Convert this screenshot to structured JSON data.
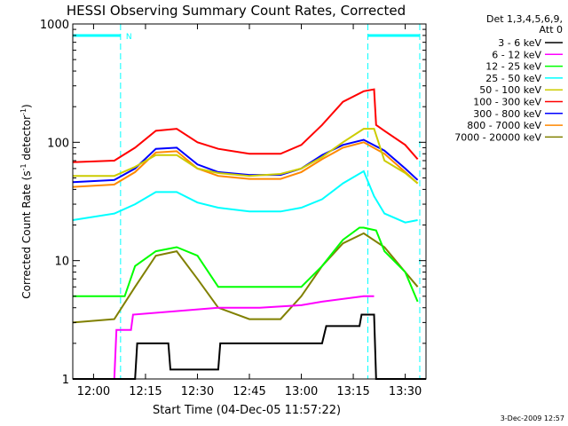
{
  "chart_data": {
    "type": "line",
    "title": "HESSI Observing Summary Count Rates, Corrected",
    "xlabel": "Start Time (04-Dec-05 11:57:22)",
    "ylabel": "Corrected Count Rate (s",
    "ylabel_sup1": "-1",
    "ylabel_mid": " detector",
    "ylabel_sup2": "-1",
    "ylabel_end": ")",
    "xlim": [
      11.9,
      13.6
    ],
    "ylim": [
      1,
      1000
    ],
    "yscale": "log",
    "x_ticks": [
      12.0,
      12.25,
      12.5,
      12.75,
      13.0,
      13.25,
      13.5
    ],
    "x_tick_labels": [
      "12:00",
      "12:15",
      "12:30",
      "12:45",
      "13:00",
      "13:15",
      "13:30"
    ],
    "y_ticks": [
      1,
      10,
      100,
      1000
    ],
    "y_tick_labels": [
      "1",
      "10",
      "100",
      "1000"
    ],
    "legend_header": [
      "Det 1,3,4,5,6,9,",
      "Att 0"
    ],
    "legend_position": "right",
    "grid": false,
    "timestamp": "3-Dec-2009 12:57",
    "night_marker": "N",
    "night_lines": [
      12.13,
      13.32,
      13.57
    ],
    "night_bars": [
      [
        11.9,
        12.13
      ],
      [
        13.32,
        13.57
      ]
    ],
    "series": [
      {
        "name": "3 - 6 keV",
        "color": "#000000",
        "x": [
          11.9,
          12.2,
          12.21,
          12.36,
          12.37,
          12.6,
          12.61,
          13.1,
          13.12,
          13.28,
          13.29,
          13.35,
          13.36,
          13.6
        ],
        "y": [
          1.0,
          1.0,
          2.0,
          2.0,
          1.2,
          1.2,
          2.0,
          2.0,
          2.8,
          2.8,
          3.5,
          3.5,
          1.0,
          1.0
        ]
      },
      {
        "name": "6 - 12 keV",
        "color": "#ff00ff",
        "x": [
          12.0,
          12.1,
          12.11,
          12.18,
          12.19,
          12.6,
          12.8,
          13.0,
          13.1,
          13.3,
          13.35
        ],
        "y": [
          1.0,
          1.0,
          2.6,
          2.6,
          3.5,
          4.0,
          4.0,
          4.2,
          4.5,
          5.0,
          5.0
        ]
      },
      {
        "name": "12 - 25 keV",
        "color": "#00ff00",
        "x": [
          11.9,
          12.15,
          12.2,
          12.3,
          12.4,
          12.5,
          12.6,
          13.0,
          13.1,
          13.2,
          13.28,
          13.3,
          13.36,
          13.4,
          13.5,
          13.56
        ],
        "y": [
          5.0,
          5.0,
          9.0,
          12.0,
          13.0,
          11.0,
          6.0,
          6.0,
          9.0,
          15.0,
          19.0,
          19.0,
          18.0,
          12.0,
          8.0,
          4.5
        ]
      },
      {
        "name": "25 - 50 keV",
        "color": "#00ffff",
        "x": [
          11.9,
          12.1,
          12.2,
          12.3,
          12.4,
          12.5,
          12.6,
          12.75,
          12.9,
          13.0,
          13.1,
          13.2,
          13.3,
          13.35,
          13.4,
          13.5,
          13.56
        ],
        "y": [
          22.0,
          25.0,
          30.0,
          38.0,
          38.0,
          31.0,
          28.0,
          26.0,
          26.0,
          28.0,
          33.0,
          45.0,
          57.0,
          35.0,
          25.0,
          21.0,
          22.0
        ]
      },
      {
        "name": "50 - 100 keV",
        "color": "#cccc00",
        "x": [
          11.9,
          12.1,
          12.2,
          12.3,
          12.4,
          12.5,
          12.6,
          12.75,
          12.9,
          13.0,
          13.1,
          13.2,
          13.3,
          13.35,
          13.4,
          13.5,
          13.56
        ],
        "y": [
          52.0,
          52.0,
          62.0,
          78.0,
          78.0,
          60.0,
          55.0,
          52.0,
          54.0,
          60.0,
          75.0,
          100.0,
          130.0,
          130.0,
          70.0,
          55.0,
          45.0
        ]
      },
      {
        "name": "100 - 300 keV",
        "color": "#ff0000",
        "x": [
          11.9,
          12.1,
          12.2,
          12.3,
          12.4,
          12.5,
          12.6,
          12.75,
          12.9,
          13.0,
          13.1,
          13.2,
          13.3,
          13.35,
          13.36,
          13.4,
          13.5,
          13.56
        ],
        "y": [
          68.0,
          70.0,
          90.0,
          125.0,
          130.0,
          100.0,
          88.0,
          80.0,
          80.0,
          95.0,
          140.0,
          220.0,
          270.0,
          280.0,
          140.0,
          125.0,
          95.0,
          72.0
        ]
      },
      {
        "name": "300 - 800 keV",
        "color": "#0000ff",
        "x": [
          11.9,
          12.1,
          12.2,
          12.3,
          12.4,
          12.5,
          12.6,
          12.75,
          12.9,
          13.0,
          13.1,
          13.2,
          13.3,
          13.4,
          13.5,
          13.56
        ],
        "y": [
          46.0,
          48.0,
          60.0,
          88.0,
          90.0,
          65.0,
          56.0,
          53.0,
          53.0,
          60.0,
          78.0,
          95.0,
          105.0,
          85.0,
          60.0,
          48.0
        ]
      },
      {
        "name": "800 - 7000 keV",
        "color": "#ff8800",
        "x": [
          11.9,
          12.1,
          12.2,
          12.3,
          12.4,
          12.5,
          12.6,
          12.75,
          12.9,
          13.0,
          13.1,
          13.2,
          13.3,
          13.4,
          13.5,
          13.56
        ],
        "y": [
          42.0,
          44.0,
          56.0,
          82.0,
          84.0,
          60.0,
          52.0,
          49.0,
          49.0,
          56.0,
          72.0,
          90.0,
          100.0,
          80.0,
          56.0,
          45.0
        ]
      },
      {
        "name": "7000 - 20000 keV",
        "color": "#808000",
        "x": [
          11.9,
          12.1,
          12.2,
          12.3,
          12.4,
          12.5,
          12.6,
          12.75,
          12.9,
          13.0,
          13.1,
          13.2,
          13.3,
          13.4,
          13.5,
          13.56
        ],
        "y": [
          3.0,
          3.2,
          6.0,
          11.0,
          12.0,
          7.0,
          4.0,
          3.2,
          3.2,
          5.0,
          9.0,
          14.0,
          17.0,
          13.0,
          8.0,
          6.0
        ]
      }
    ]
  }
}
